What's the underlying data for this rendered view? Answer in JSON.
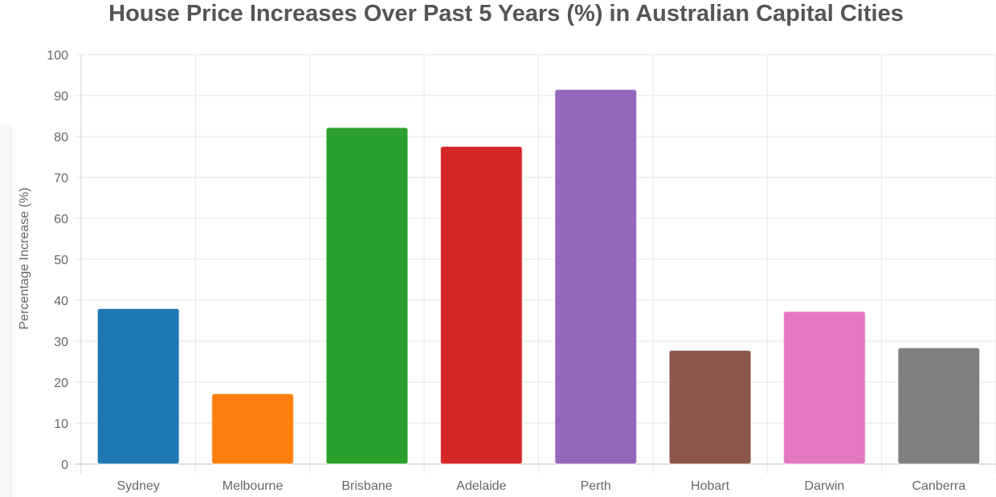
{
  "chart_data": {
    "type": "bar",
    "title": "House Price Increases Over Past 5 Years (%) in Australian Capital Cities",
    "xlabel": "",
    "ylabel": "Percentage Increase (%)",
    "ylim": [
      0,
      100
    ],
    "yticks": [
      0,
      10,
      20,
      30,
      40,
      50,
      60,
      70,
      80,
      90,
      100
    ],
    "categories": [
      "Sydney",
      "Melbourne",
      "Brisbane",
      "Adelaide",
      "Perth",
      "Hobart",
      "Darwin",
      "Canberra"
    ],
    "values": [
      38,
      17.2,
      82.2,
      77.6,
      91.5,
      27.8,
      37.3,
      28.4
    ],
    "colors": [
      "#1f77b4",
      "#ff7f0e",
      "#2ca02c",
      "#d62728",
      "#9467bd",
      "#8c564b",
      "#e377c2",
      "#7f7f7f"
    ],
    "grid": true,
    "legend": "none"
  }
}
